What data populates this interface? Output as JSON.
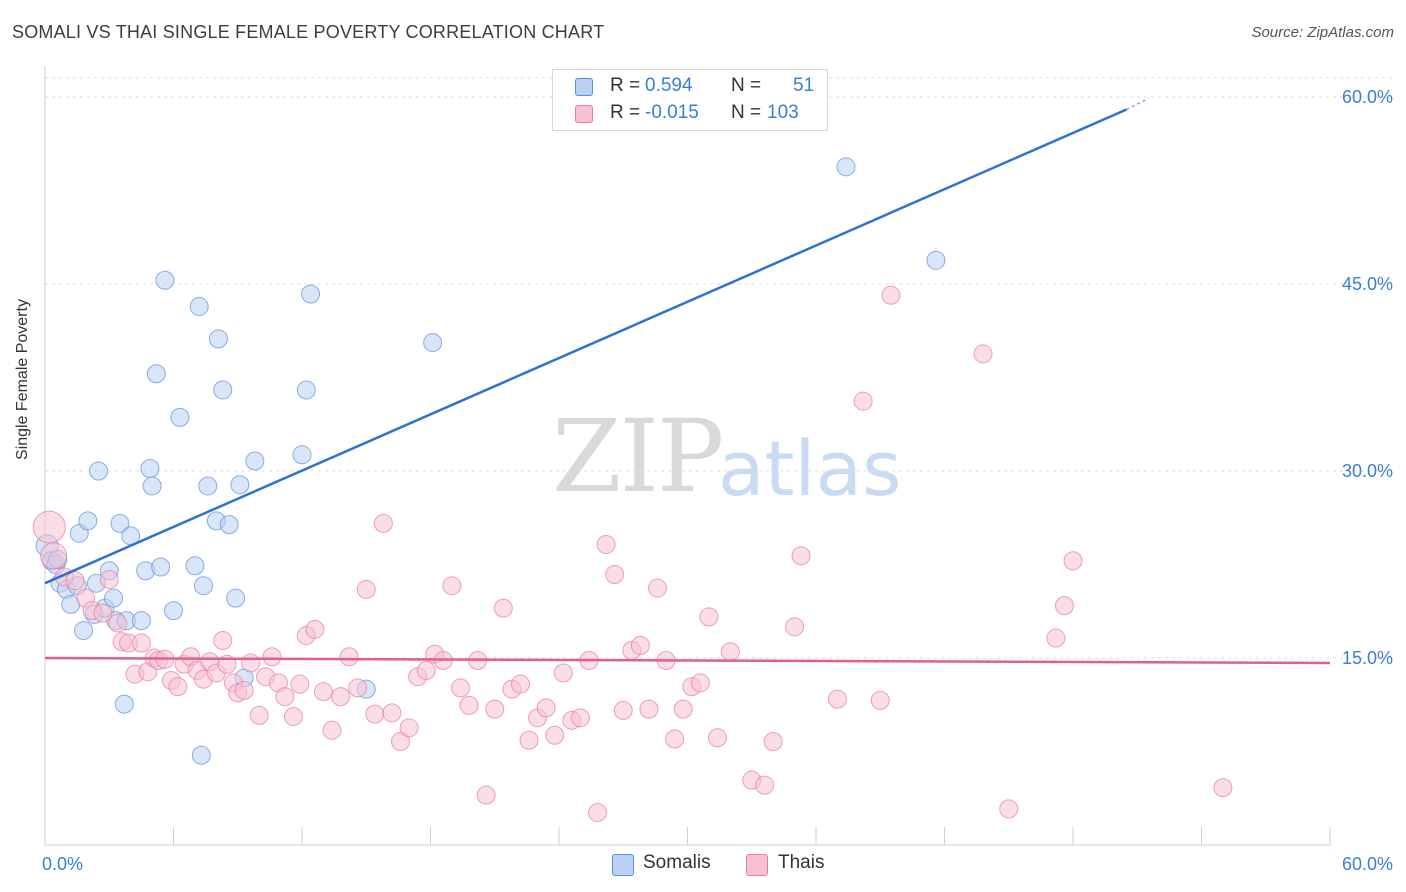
{
  "title": "SOMALI VS THAI SINGLE FEMALE POVERTY CORRELATION CHART",
  "source": "Source: ZipAtlas.com",
  "watermark": {
    "zip": "ZIP",
    "atlas": "atlas"
  },
  "colors": {
    "somali": "#5b8fd8",
    "somali_fill": "#b9d1f3",
    "thai": "#e879a0",
    "thai_fill": "#f6c1d3",
    "axis_text": "#3b7dd8"
  },
  "legend_top": {
    "rows": [
      {
        "r_label": "R =",
        "r_value": "0.594",
        "n_label": "N =",
        "n_value": "51"
      },
      {
        "r_label": "R =",
        "r_value": "-0.015",
        "n_label": "N =",
        "n_value": "103"
      }
    ]
  },
  "legend_bottom": {
    "somali": "Somalis",
    "thai": "Thais"
  },
  "chart_data": {
    "type": "scatter",
    "title": "SOMALI VS THAI SINGLE FEMALE POVERTY CORRELATION CHART",
    "xlabel": "",
    "ylabel": "Single Female Poverty",
    "xlim": [
      0,
      60
    ],
    "ylim": [
      0,
      60
    ],
    "x_tick_labels": [
      "0.0%",
      "60.0%"
    ],
    "y_tick_labels": [
      {
        "value": 15,
        "label": "15.0%"
      },
      {
        "value": 30,
        "label": "30.0%"
      },
      {
        "value": 45,
        "label": "45.0%"
      },
      {
        "value": 60,
        "label": "60.0%"
      }
    ],
    "series": [
      {
        "name": "Somalis",
        "trend": {
          "x": [
            0,
            50.5
          ],
          "y": [
            21.0,
            59.0
          ]
        },
        "points": [
          [
            0.1,
            24.0
          ],
          [
            0.3,
            22.8
          ],
          [
            0.5,
            22.5
          ],
          [
            0.7,
            21.0
          ],
          [
            1.0,
            20.5
          ],
          [
            1.2,
            19.3
          ],
          [
            1.5,
            20.8
          ],
          [
            1.6,
            25.0
          ],
          [
            1.8,
            17.2
          ],
          [
            2.0,
            26.0
          ],
          [
            2.3,
            18.5
          ],
          [
            2.4,
            21.0
          ],
          [
            2.5,
            30.0
          ],
          [
            2.8,
            19.0
          ],
          [
            3.0,
            22.0
          ],
          [
            3.2,
            19.8
          ],
          [
            3.3,
            18.0
          ],
          [
            3.5,
            25.8
          ],
          [
            3.8,
            18.0
          ],
          [
            3.7,
            11.3
          ],
          [
            4.0,
            24.8
          ],
          [
            4.5,
            18.0
          ],
          [
            4.7,
            22.0
          ],
          [
            4.9,
            30.2
          ],
          [
            5.0,
            28.8
          ],
          [
            5.2,
            37.8
          ],
          [
            5.4,
            22.3
          ],
          [
            5.6,
            45.3
          ],
          [
            6.0,
            18.8
          ],
          [
            6.3,
            34.3
          ],
          [
            7.0,
            22.4
          ],
          [
            7.2,
            43.2
          ],
          [
            7.4,
            20.8
          ],
          [
            7.6,
            28.8
          ],
          [
            7.3,
            7.2
          ],
          [
            8.0,
            26.0
          ],
          [
            8.1,
            40.6
          ],
          [
            8.3,
            36.5
          ],
          [
            8.6,
            25.7
          ],
          [
            8.9,
            19.8
          ],
          [
            9.1,
            28.9
          ],
          [
            9.3,
            13.4
          ],
          [
            9.8,
            30.8
          ],
          [
            12.0,
            31.3
          ],
          [
            12.2,
            36.5
          ],
          [
            12.4,
            44.2
          ],
          [
            15.0,
            12.5
          ],
          [
            18.1,
            40.3
          ],
          [
            37.4,
            54.4
          ],
          [
            41.6,
            46.9
          ],
          [
            0.6,
            22.9
          ]
        ]
      },
      {
        "name": "Thais",
        "trend": {
          "x": [
            0,
            60
          ],
          "y": [
            15.0,
            14.6
          ]
        },
        "points": [
          [
            0.2,
            25.5
          ],
          [
            0.4,
            23.2
          ],
          [
            0.9,
            21.5
          ],
          [
            1.4,
            21.2
          ],
          [
            1.9,
            19.8
          ],
          [
            2.2,
            18.8
          ],
          [
            2.7,
            18.6
          ],
          [
            3.0,
            21.3
          ],
          [
            3.4,
            17.8
          ],
          [
            3.6,
            16.3
          ],
          [
            3.9,
            16.2
          ],
          [
            4.2,
            13.7
          ],
          [
            4.5,
            16.2
          ],
          [
            4.8,
            13.9
          ],
          [
            5.1,
            15.0
          ],
          [
            5.3,
            14.8
          ],
          [
            5.6,
            14.9
          ],
          [
            5.9,
            13.2
          ],
          [
            6.2,
            12.7
          ],
          [
            6.5,
            14.5
          ],
          [
            6.8,
            15.1
          ],
          [
            7.1,
            14.0
          ],
          [
            7.4,
            13.3
          ],
          [
            7.7,
            14.7
          ],
          [
            8.0,
            13.8
          ],
          [
            8.3,
            16.4
          ],
          [
            8.5,
            14.5
          ],
          [
            8.8,
            13.0
          ],
          [
            9.0,
            12.2
          ],
          [
            9.3,
            12.4
          ],
          [
            9.6,
            14.6
          ],
          [
            10.0,
            10.4
          ],
          [
            10.3,
            13.5
          ],
          [
            10.6,
            15.1
          ],
          [
            10.9,
            13.0
          ],
          [
            11.2,
            11.9
          ],
          [
            11.6,
            10.3
          ],
          [
            11.9,
            12.9
          ],
          [
            12.2,
            16.8
          ],
          [
            12.6,
            17.3
          ],
          [
            13.0,
            12.3
          ],
          [
            13.4,
            9.2
          ],
          [
            13.8,
            11.9
          ],
          [
            14.2,
            15.1
          ],
          [
            14.6,
            12.6
          ],
          [
            15.0,
            20.5
          ],
          [
            15.4,
            10.5
          ],
          [
            15.8,
            25.8
          ],
          [
            16.2,
            10.6
          ],
          [
            16.6,
            8.3
          ],
          [
            17.0,
            9.4
          ],
          [
            17.4,
            13.5
          ],
          [
            17.8,
            14.0
          ],
          [
            18.2,
            15.3
          ],
          [
            18.6,
            14.8
          ],
          [
            19.0,
            20.8
          ],
          [
            19.4,
            12.6
          ],
          [
            19.8,
            11.2
          ],
          [
            20.2,
            14.8
          ],
          [
            20.6,
            4.0
          ],
          [
            21.0,
            10.9
          ],
          [
            21.4,
            19.0
          ],
          [
            21.8,
            12.5
          ],
          [
            22.2,
            12.9
          ],
          [
            22.6,
            8.4
          ],
          [
            23.0,
            10.2
          ],
          [
            23.4,
            11.0
          ],
          [
            23.8,
            8.8
          ],
          [
            24.2,
            13.8
          ],
          [
            24.6,
            10.0
          ],
          [
            25.0,
            10.2
          ],
          [
            25.4,
            14.8
          ],
          [
            25.8,
            2.6
          ],
          [
            26.2,
            24.1
          ],
          [
            26.6,
            21.7
          ],
          [
            27.0,
            10.8
          ],
          [
            27.4,
            15.6
          ],
          [
            27.8,
            16.0
          ],
          [
            28.2,
            10.9
          ],
          [
            28.6,
            20.6
          ],
          [
            29.0,
            14.8
          ],
          [
            29.4,
            8.5
          ],
          [
            29.8,
            10.9
          ],
          [
            30.2,
            12.7
          ],
          [
            30.6,
            13.0
          ],
          [
            31.0,
            18.3
          ],
          [
            31.4,
            8.6
          ],
          [
            32.0,
            15.5
          ],
          [
            33.0,
            5.2
          ],
          [
            33.6,
            4.8
          ],
          [
            34.0,
            8.3
          ],
          [
            35.0,
            17.5
          ],
          [
            35.3,
            23.2
          ],
          [
            37.0,
            11.7
          ],
          [
            38.2,
            35.6
          ],
          [
            39.0,
            11.6
          ],
          [
            39.5,
            44.1
          ],
          [
            43.8,
            39.4
          ],
          [
            45.0,
            2.9
          ],
          [
            47.2,
            16.6
          ],
          [
            47.6,
            19.2
          ],
          [
            48.0,
            22.8
          ],
          [
            55.0,
            4.6
          ]
        ]
      }
    ],
    "grid": true
  }
}
